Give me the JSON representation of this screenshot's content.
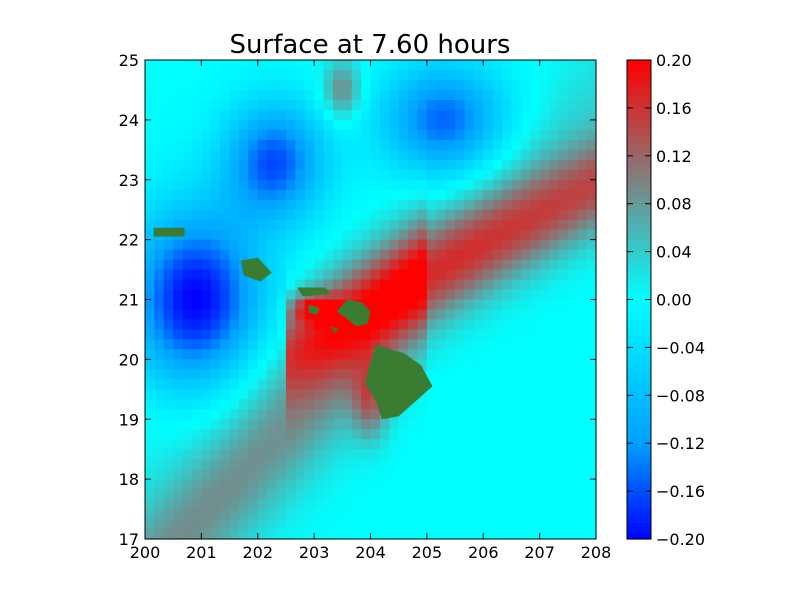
{
  "chart_data": {
    "type": "heatmap",
    "title": "Surface at 7.60 hours",
    "xlabel": "",
    "ylabel": "",
    "xlim": [
      200,
      208
    ],
    "ylim": [
      17,
      25
    ],
    "x_ticks": [
      "200",
      "201",
      "202",
      "203",
      "204",
      "205",
      "206",
      "207",
      "208"
    ],
    "y_ticks": [
      "17",
      "18",
      "19",
      "20",
      "21",
      "22",
      "23",
      "24",
      "25"
    ],
    "colorbar": {
      "range": [
        -0.2,
        0.2
      ],
      "ticks": [
        "0.20",
        "0.16",
        "0.12",
        "0.08",
        "0.04",
        "0.00",
        "−0.04",
        "−0.08",
        "−0.12",
        "−0.16",
        "−0.20"
      ],
      "colors": {
        "min": "#0000ff",
        "low": "#00a0ff",
        "zero": "#00ffff",
        "mid": "#808080",
        "max": "#ff0000"
      }
    },
    "land_color": "#3a7d32",
    "grid": false,
    "resolution": [
      48,
      48
    ]
  }
}
